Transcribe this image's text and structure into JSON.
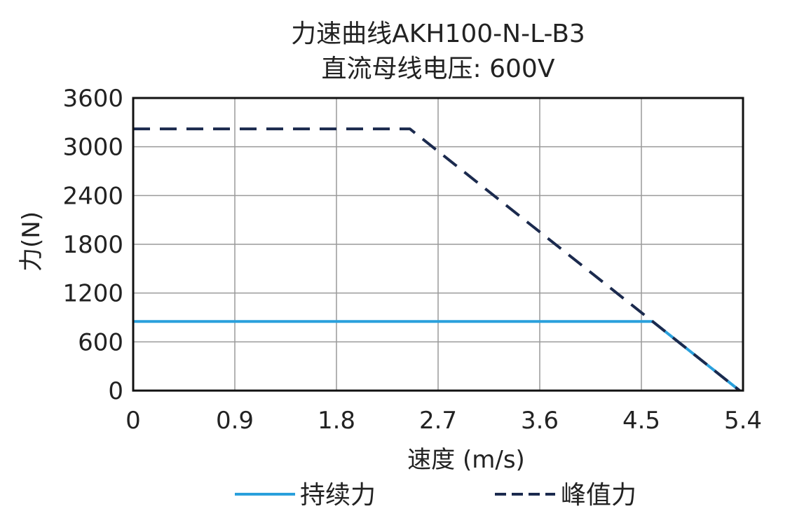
{
  "chart_data": {
    "type": "line",
    "title": "力速曲线AKH100-N-L-B3",
    "subtitle": "直流母线电压: 600V",
    "xlabel": "速度 (m/s)",
    "ylabel": "力(N)",
    "xlim": [
      0,
      5.4
    ],
    "ylim": [
      0,
      3600
    ],
    "xticks": [
      "0",
      "0.9",
      "1.8",
      "2.7",
      "3.6",
      "4.5",
      "5.4"
    ],
    "yticks": [
      "0",
      "600",
      "1200",
      "1800",
      "2400",
      "3000",
      "3600"
    ],
    "grid": true,
    "legend_position": "bottom",
    "series": [
      {
        "name": "持续力",
        "style": "solid",
        "color": "#2aa0dc",
        "points": [
          [
            0,
            850
          ],
          [
            4.6,
            850
          ],
          [
            5.37,
            0
          ]
        ]
      },
      {
        "name": "峰值力",
        "style": "dashed",
        "color": "#1b2a4e",
        "points": [
          [
            0,
            3220
          ],
          [
            2.45,
            3220
          ],
          [
            4.6,
            850
          ],
          [
            5.37,
            0
          ]
        ]
      }
    ]
  }
}
